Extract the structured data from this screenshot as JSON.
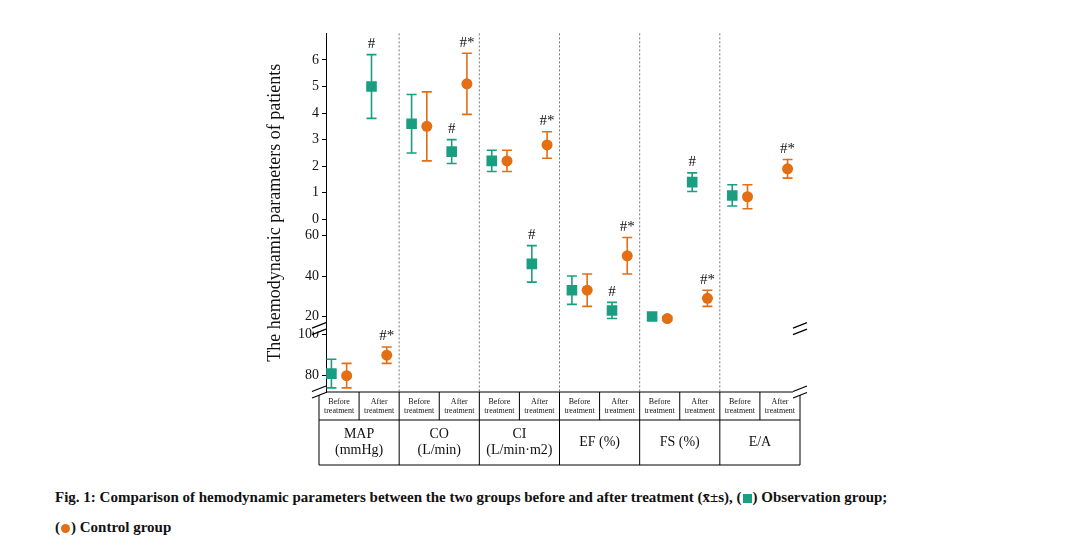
{
  "chart_data": {
    "type": "scatter",
    "y_label": "The hemodynamic parameters of patients",
    "categories": [
      "Before treatment",
      "After treatment",
      "Before treatment",
      "After treatment",
      "Before treatment",
      "After treatment",
      "Before treatment",
      "After treatment",
      "Before treatment",
      "After treatment",
      "Before treatment",
      "After treatment"
    ],
    "groups": [
      {
        "label": [
          "MAP",
          "(mmHg)"
        ],
        "span": 2
      },
      {
        "label": [
          "CO",
          "(L/min)"
        ],
        "span": 2
      },
      {
        "label": [
          "CI",
          "(L/min·m2)"
        ],
        "span": 2
      },
      {
        "label": [
          "EF (%)"
        ],
        "span": 2
      },
      {
        "label": [
          "FS (%)"
        ],
        "span": 2
      },
      {
        "label": [
          "E/A"
        ],
        "span": 2
      }
    ],
    "y_axes": [
      {
        "ylim": [
          72,
          103
        ],
        "yticks": [
          80,
          100
        ]
      },
      {
        "ylim": [
          14,
          68
        ],
        "yticks": [
          20,
          40,
          60
        ]
      },
      {
        "ylim": [
          0,
          7
        ],
        "yticks": [
          0,
          1,
          2,
          3,
          4,
          5,
          6
        ]
      }
    ],
    "grid": false,
    "series": [
      {
        "name": "Observation group",
        "color": "#1a9e82",
        "marker": "square",
        "values": [
          81,
          5.0,
          3.6,
          2.55,
          2.2,
          46,
          33,
          23,
          20,
          1.4,
          0.9,
          null
        ],
        "errors": [
          7,
          1.2,
          1.1,
          0.45,
          0.4,
          9,
          7,
          4,
          1,
          0.35,
          0.4,
          null
        ],
        "marks": [
          null,
          "#",
          null,
          "#",
          null,
          "#",
          null,
          "#",
          null,
          "#",
          null,
          null
        ]
      },
      {
        "name": "Control group",
        "color": "#e36e14",
        "marker": "circle",
        "values": [
          80,
          90,
          3.5,
          5.1,
          2.2,
          2.8,
          33,
          50,
          19,
          29,
          0.85,
          1.9
        ],
        "errors": [
          6,
          4,
          1.3,
          1.15,
          0.4,
          0.5,
          8,
          9,
          1,
          4,
          0.45,
          0.35
        ],
        "marks": [
          null,
          "#*",
          null,
          "#*",
          null,
          "#*",
          null,
          "#*",
          null,
          "#*",
          null,
          "#*"
        ]
      }
    ],
    "caption": [
      [
        "Fig. 1: Comparison of hemodynamic parameters between the two groups before and after treatment (x̄±s), (",
        {
          "marker": 0
        },
        ") ",
        {
          "name": 0
        },
        ";"
      ],
      [
        "(",
        {
          "marker": 1
        },
        ") ",
        {
          "name": 1
        }
      ]
    ]
  }
}
